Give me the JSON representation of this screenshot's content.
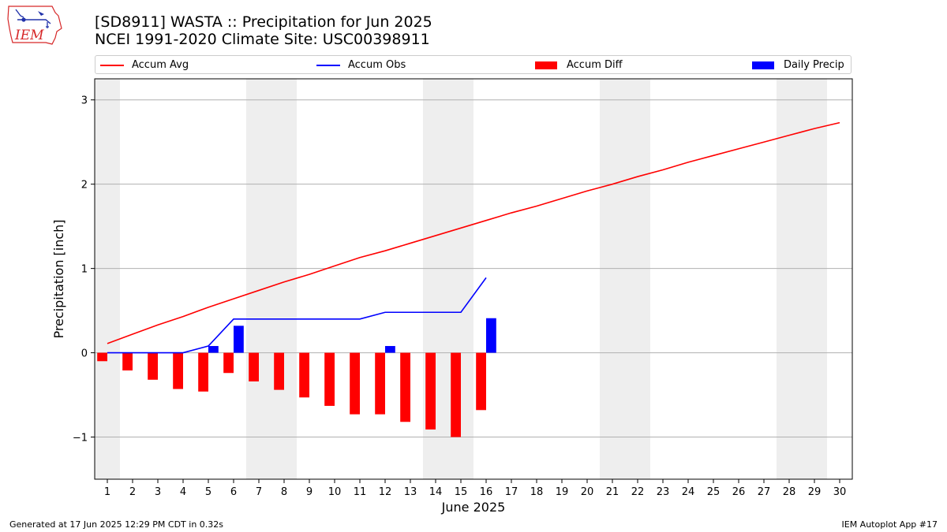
{
  "logo": {
    "text": "IEM",
    "icon": "iem-logo-icon"
  },
  "chart_data": {
    "type": "bar",
    "title": "[SD8911] WASTA :: Precipitation for Jun 2025",
    "subtitle": "NCEI 1991-2020 Climate Site: USC00398911",
    "xlabel": "June 2025",
    "ylabel": "Precipitation [inch]",
    "ylim": [
      -1.5,
      3.25
    ],
    "yticks": [
      3,
      2,
      1,
      0,
      -1
    ],
    "ytick_labels": [
      "3",
      "2",
      "1",
      "0",
      "−1"
    ],
    "x": [
      1,
      2,
      3,
      4,
      5,
      6,
      7,
      8,
      9,
      10,
      11,
      12,
      13,
      14,
      15,
      16,
      17,
      18,
      19,
      20,
      21,
      22,
      23,
      24,
      25,
      26,
      27,
      28,
      29,
      30
    ],
    "xtick_labels": [
      "1",
      "2",
      "3",
      "4",
      "5",
      "6",
      "7",
      "8",
      "9",
      "10",
      "11",
      "12",
      "13",
      "14",
      "15",
      "16",
      "17",
      "18",
      "19",
      "20",
      "21",
      "22",
      "23",
      "24",
      "25",
      "26",
      "27",
      "28",
      "29",
      "30"
    ],
    "xlim": [
      0.5,
      30.5
    ],
    "weekend_shading": [
      [
        0.5,
        1.5
      ],
      [
        6.5,
        8.5
      ],
      [
        13.5,
        15.5
      ],
      [
        20.5,
        22.5
      ],
      [
        27.5,
        29.5
      ]
    ],
    "grid": "y",
    "legend_placement": "top",
    "series": [
      {
        "name": "Accum Avg",
        "kind": "line",
        "color": "#ff0000",
        "x": [
          1,
          2,
          3,
          4,
          5,
          6,
          7,
          8,
          9,
          10,
          11,
          12,
          13,
          14,
          15,
          16,
          17,
          18,
          19,
          20,
          21,
          22,
          23,
          24,
          25,
          26,
          27,
          28,
          29,
          30
        ],
        "values": [
          0.11,
          0.22,
          0.33,
          0.43,
          0.54,
          0.64,
          0.74,
          0.84,
          0.93,
          1.03,
          1.13,
          1.21,
          1.3,
          1.39,
          1.48,
          1.57,
          1.66,
          1.74,
          1.83,
          1.92,
          2.0,
          2.09,
          2.17,
          2.26,
          2.34,
          2.42,
          2.5,
          2.58,
          2.66,
          2.73
        ]
      },
      {
        "name": "Accum Obs",
        "kind": "line",
        "color": "#0000ff",
        "x": [
          1,
          2,
          3,
          4,
          5,
          6,
          7,
          8,
          9,
          10,
          11,
          12,
          13,
          14,
          15,
          16
        ],
        "values": [
          0,
          0,
          0,
          0,
          0.08,
          0.4,
          0.4,
          0.4,
          0.4,
          0.4,
          0.4,
          0.48,
          0.48,
          0.48,
          0.48,
          0.89
        ]
      },
      {
        "name": "Accum Diff",
        "kind": "bar",
        "color": "#ff0000",
        "offset": "left",
        "x": [
          1,
          2,
          3,
          4,
          5,
          6,
          7,
          8,
          9,
          10,
          11,
          12,
          13,
          14,
          15,
          16
        ],
        "values": [
          -0.1,
          -0.21,
          -0.32,
          -0.43,
          -0.46,
          -0.24,
          -0.34,
          -0.44,
          -0.53,
          -0.63,
          -0.73,
          -0.73,
          -0.82,
          -0.91,
          -1.0,
          -0.68
        ]
      },
      {
        "name": "Daily Precip",
        "kind": "bar",
        "color": "#0000ff",
        "offset": "right",
        "x": [
          1,
          2,
          3,
          4,
          5,
          6,
          7,
          8,
          9,
          10,
          11,
          12,
          13,
          14,
          15,
          16
        ],
        "values": [
          0,
          0,
          0,
          0,
          0.08,
          0.32,
          0,
          0,
          0,
          0,
          0,
          0.08,
          0,
          0,
          0,
          0.41
        ]
      }
    ]
  },
  "footer": {
    "generated": "Generated at 17 Jun 2025 12:29 PM CDT in 0.32s",
    "app": "IEM Autoplot App #17"
  }
}
